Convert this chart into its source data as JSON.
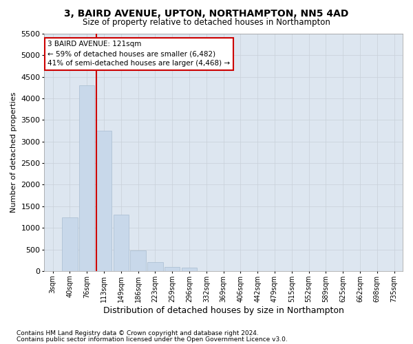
{
  "title": "3, BAIRD AVENUE, UPTON, NORTHAMPTON, NN5 4AD",
  "subtitle": "Size of property relative to detached houses in Northampton",
  "xlabel": "Distribution of detached houses by size in Northampton",
  "ylabel": "Number of detached properties",
  "footnote1": "Contains HM Land Registry data © Crown copyright and database right 2024.",
  "footnote2": "Contains public sector information licensed under the Open Government Licence v3.0.",
  "annotation_title": "3 BAIRD AVENUE: 121sqm",
  "annotation_line1": "← 59% of detached houses are smaller (6,482)",
  "annotation_line2": "41% of semi-detached houses are larger (4,468) →",
  "bar_color": "#c8d8ea",
  "bar_edge_color": "#a8bcd0",
  "vline_color": "#cc0000",
  "annotation_edge_color": "#cc0000",
  "categories": [
    "3sqm",
    "40sqm",
    "76sqm",
    "113sqm",
    "149sqm",
    "186sqm",
    "223sqm",
    "259sqm",
    "296sqm",
    "332sqm",
    "369sqm",
    "406sqm",
    "442sqm",
    "479sqm",
    "515sqm",
    "552sqm",
    "589sqm",
    "625sqm",
    "662sqm",
    "698sqm",
    "735sqm"
  ],
  "values": [
    0,
    1250,
    4300,
    3250,
    1300,
    480,
    200,
    100,
    70,
    0,
    0,
    0,
    0,
    0,
    0,
    0,
    0,
    0,
    0,
    0,
    0
  ],
  "vline_x_idx": 2.57,
  "ylim": [
    0,
    5500
  ],
  "yticks": [
    0,
    500,
    1000,
    1500,
    2000,
    2500,
    3000,
    3500,
    4000,
    4500,
    5000,
    5500
  ],
  "background_color": "#ffffff",
  "grid_color": "#c8d0d8",
  "ax_bg_color": "#dde6f0"
}
